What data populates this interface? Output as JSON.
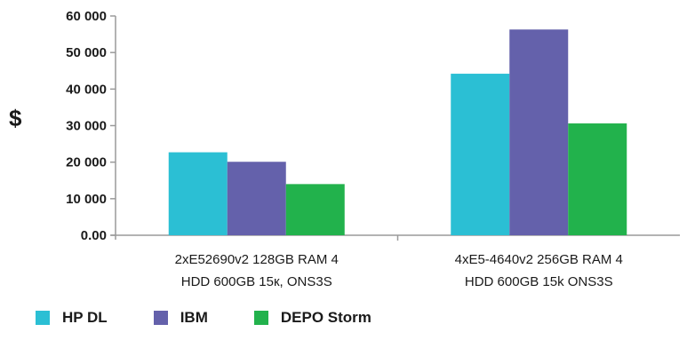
{
  "chart_data": {
    "type": "bar",
    "title": "",
    "xlabel": "",
    "ylabel": "$",
    "ylim": [
      0,
      60000
    ],
    "yticks": [
      0,
      10000,
      20000,
      30000,
      40000,
      50000,
      60000
    ],
    "ytick_labels": [
      "0.00",
      "10 000",
      "20 000",
      "30 000",
      "40 000",
      "50 000",
      "60 000"
    ],
    "categories": [
      [
        "2xE52690v2 128GB RAM 4",
        "HDD 600GB 15к, ONS3S"
      ],
      [
        "4xE5-4640v2 256GB RAM 4",
        "HDD 600GB 15k ONS3S"
      ]
    ],
    "series": [
      {
        "name": "HP DL",
        "color": "#2bbfd4",
        "values": [
          22700,
          44200
        ]
      },
      {
        "name": "IBM",
        "color": "#6461ab",
        "values": [
          20100,
          56300
        ]
      },
      {
        "name": "DEPO Storm",
        "color": "#22b24c",
        "values": [
          14000,
          30600
        ]
      }
    ],
    "legend_position": "bottom-left",
    "grid": false
  }
}
